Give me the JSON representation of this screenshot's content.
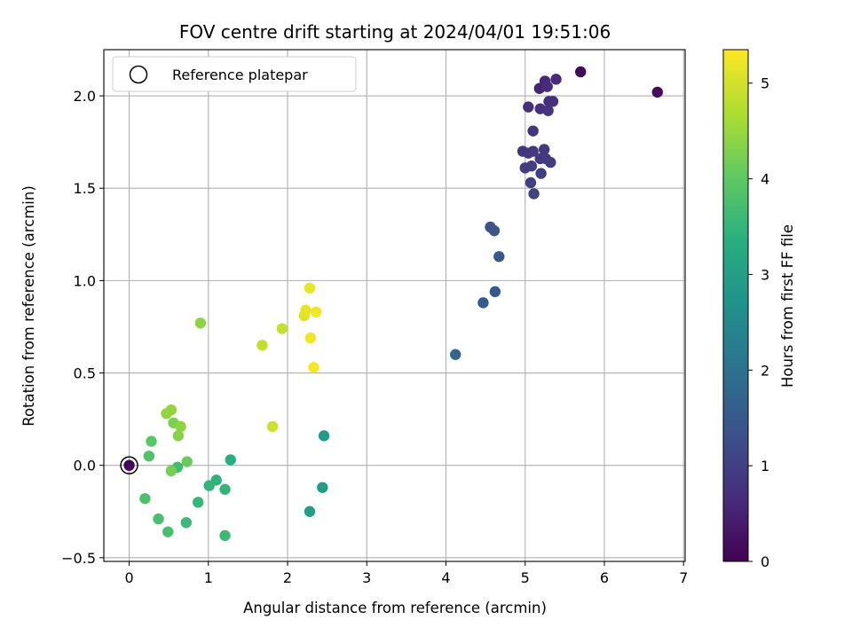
{
  "chart_data": {
    "type": "scatter",
    "title": "FOV centre drift starting at 2024/04/01 19:51:06",
    "xlabel": "Angular distance from reference (arcmin)",
    "ylabel": "Rotation from reference (arcmin)",
    "xlim": [
      -0.32,
      7.02
    ],
    "ylim": [
      -0.52,
      2.25
    ],
    "xticks": [
      0,
      1,
      2,
      3,
      4,
      5,
      6,
      7
    ],
    "yticks": [
      -0.5,
      0.0,
      0.5,
      1.0,
      1.5,
      2.0
    ],
    "ytick_labels": [
      "−0.5",
      "0.0",
      "0.5",
      "1.0",
      "1.5",
      "2.0"
    ],
    "grid": true,
    "colormap": "viridis",
    "colorbar": {
      "label": "Hours from first FF file",
      "range": [
        0,
        5.35
      ],
      "ticks": [
        0,
        1,
        2,
        3,
        4,
        5
      ]
    },
    "legend": {
      "position": "upper-left",
      "entries": [
        "Reference platepar"
      ]
    },
    "reference_point": {
      "x": 0.0,
      "y": 0.0
    },
    "points": [
      {
        "x": 0.0,
        "y": 0.0,
        "c": 0.05
      },
      {
        "x": 5.7,
        "y": 2.13,
        "c": 0.1
      },
      {
        "x": 6.67,
        "y": 2.02,
        "c": 0.15
      },
      {
        "x": 5.18,
        "y": 2.04,
        "c": 0.55
      },
      {
        "x": 5.25,
        "y": 2.08,
        "c": 0.6
      },
      {
        "x": 5.39,
        "y": 2.09,
        "c": 0.62
      },
      {
        "x": 5.28,
        "y": 2.05,
        "c": 0.65
      },
      {
        "x": 5.3,
        "y": 1.97,
        "c": 0.68
      },
      {
        "x": 5.35,
        "y": 1.97,
        "c": 0.7
      },
      {
        "x": 5.04,
        "y": 1.94,
        "c": 0.72
      },
      {
        "x": 5.19,
        "y": 1.93,
        "c": 0.75
      },
      {
        "x": 5.29,
        "y": 1.92,
        "c": 0.78
      },
      {
        "x": 5.1,
        "y": 1.81,
        "c": 0.8
      },
      {
        "x": 4.97,
        "y": 1.7,
        "c": 0.82
      },
      {
        "x": 5.04,
        "y": 1.69,
        "c": 0.84
      },
      {
        "x": 5.1,
        "y": 1.7,
        "c": 0.86
      },
      {
        "x": 5.24,
        "y": 1.71,
        "c": 0.88
      },
      {
        "x": 5.19,
        "y": 1.66,
        "c": 0.9
      },
      {
        "x": 5.26,
        "y": 1.66,
        "c": 0.92
      },
      {
        "x": 5.32,
        "y": 1.64,
        "c": 0.94
      },
      {
        "x": 5.0,
        "y": 1.61,
        "c": 0.96
      },
      {
        "x": 5.08,
        "y": 1.62,
        "c": 0.98
      },
      {
        "x": 5.2,
        "y": 1.58,
        "c": 1.0
      },
      {
        "x": 5.07,
        "y": 1.53,
        "c": 1.02
      },
      {
        "x": 5.11,
        "y": 1.47,
        "c": 1.04
      },
      {
        "x": 4.56,
        "y": 1.29,
        "c": 1.35
      },
      {
        "x": 4.61,
        "y": 1.27,
        "c": 1.4
      },
      {
        "x": 4.67,
        "y": 1.13,
        "c": 1.45
      },
      {
        "x": 4.62,
        "y": 0.94,
        "c": 1.5
      },
      {
        "x": 4.47,
        "y": 0.88,
        "c": 1.55
      },
      {
        "x": 4.12,
        "y": 0.6,
        "c": 1.75
      },
      {
        "x": 2.46,
        "y": 0.16,
        "c": 2.9
      },
      {
        "x": 2.44,
        "y": -0.12,
        "c": 2.95
      },
      {
        "x": 2.28,
        "y": -0.25,
        "c": 3.0
      },
      {
        "x": 1.28,
        "y": 0.03,
        "c": 3.35
      },
      {
        "x": 1.1,
        "y": -0.08,
        "c": 3.45
      },
      {
        "x": 1.01,
        "y": -0.11,
        "c": 3.5
      },
      {
        "x": 1.21,
        "y": -0.13,
        "c": 3.5
      },
      {
        "x": 0.87,
        "y": -0.2,
        "c": 3.55
      },
      {
        "x": 0.72,
        "y": -0.31,
        "c": 3.6
      },
      {
        "x": 1.21,
        "y": -0.38,
        "c": 3.6
      },
      {
        "x": 0.61,
        "y": -0.01,
        "c": 3.65
      },
      {
        "x": 0.37,
        "y": -0.29,
        "c": 3.75
      },
      {
        "x": 0.49,
        "y": -0.36,
        "c": 3.75
      },
      {
        "x": 0.2,
        "y": -0.18,
        "c": 3.8
      },
      {
        "x": 0.25,
        "y": 0.05,
        "c": 3.85
      },
      {
        "x": 0.28,
        "y": 0.13,
        "c": 3.95
      },
      {
        "x": 0.73,
        "y": 0.02,
        "c": 4.1
      },
      {
        "x": 0.53,
        "y": -0.03,
        "c": 4.2
      },
      {
        "x": 0.56,
        "y": 0.23,
        "c": 4.25
      },
      {
        "x": 0.62,
        "y": 0.16,
        "c": 4.35
      },
      {
        "x": 0.65,
        "y": 0.21,
        "c": 4.4
      },
      {
        "x": 0.47,
        "y": 0.28,
        "c": 4.45
      },
      {
        "x": 0.53,
        "y": 0.3,
        "c": 4.45
      },
      {
        "x": 0.9,
        "y": 0.77,
        "c": 4.4
      },
      {
        "x": 1.68,
        "y": 0.65,
        "c": 4.85
      },
      {
        "x": 1.93,
        "y": 0.74,
        "c": 4.9
      },
      {
        "x": 1.81,
        "y": 0.21,
        "c": 4.95
      },
      {
        "x": 2.21,
        "y": 0.81,
        "c": 5.1
      },
      {
        "x": 2.23,
        "y": 0.84,
        "c": 5.15
      },
      {
        "x": 2.28,
        "y": 0.96,
        "c": 5.2
      },
      {
        "x": 2.36,
        "y": 0.83,
        "c": 5.25
      },
      {
        "x": 2.29,
        "y": 0.69,
        "c": 5.25
      },
      {
        "x": 2.33,
        "y": 0.53,
        "c": 5.3
      }
    ]
  }
}
